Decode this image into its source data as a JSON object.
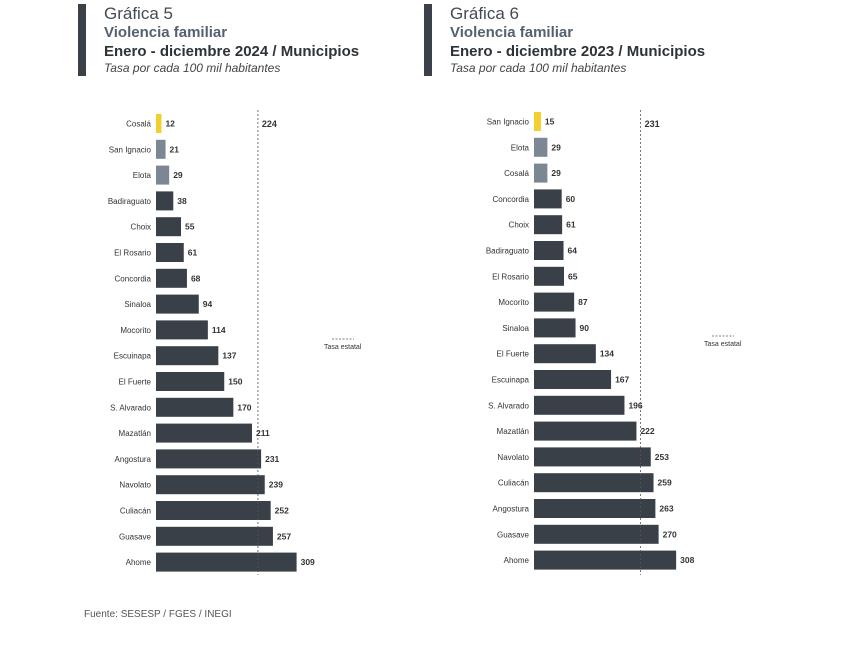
{
  "source": "Fuente: SESESP / FGES / INEGI",
  "colors": {
    "highlight": "#f2cf2e",
    "mid": "#7d8793",
    "dark": "#3a4048"
  },
  "chart_data": [
    {
      "type": "bar",
      "orientation": "horizontal",
      "label": "Gráfica 5",
      "title": "Violencia familiar",
      "subtitle": "Enero - diciembre 2024 / Municipios",
      "note": "Tasa por cada 100 mil habitantes",
      "reference_value": 224,
      "reference_label": "224",
      "legend_label": "Tasa estatal",
      "categories": [
        "Cosalá",
        "San Ignacio",
        "Elota",
        "Badiraguato",
        "Choix",
        "El Rosario",
        "Concordia",
        "Sinaloa",
        "Mocorito",
        "Escuinapa",
        "El Fuerte",
        "S. Alvarado",
        "Mazatlán",
        "Angostura",
        "Navolato",
        "Culiacán",
        "Guasave",
        "Ahome"
      ],
      "values": [
        12,
        21,
        29,
        38,
        55,
        61,
        68,
        94,
        114,
        137,
        150,
        170,
        211,
        231,
        239,
        252,
        257,
        309
      ],
      "bar_colors": [
        "highlight",
        "mid",
        "mid",
        "dark",
        "dark",
        "dark",
        "dark",
        "dark",
        "dark",
        "dark",
        "dark",
        "dark",
        "dark",
        "dark",
        "dark",
        "dark",
        "dark",
        "dark"
      ]
    },
    {
      "type": "bar",
      "orientation": "horizontal",
      "label": "Gráfica 6",
      "title": "Violencia familiar",
      "subtitle": "Enero - diciembre 2023 / Municipios",
      "note": "Tasa por cada 100 mil habitantes",
      "reference_value": 231,
      "reference_label": "231",
      "legend_label": "Tasa estatal",
      "categories": [
        "San Ignacio",
        "Elota",
        "Cosalá",
        "Concordia",
        "Choix",
        "Badiraguato",
        "El Rosario",
        "Mocorito",
        "Sinaloa",
        "El Fuerte",
        "Escuinapa",
        "S. Alvarado",
        "Mazatlán",
        "Navolato",
        "Culiacán",
        "Angostura",
        "Guasave",
        "Ahome"
      ],
      "values": [
        15,
        29,
        29,
        60,
        61,
        64,
        65,
        87,
        90,
        134,
        167,
        196,
        222,
        253,
        259,
        263,
        270,
        308
      ],
      "bar_colors": [
        "highlight",
        "mid",
        "mid",
        "dark",
        "dark",
        "dark",
        "dark",
        "dark",
        "dark",
        "dark",
        "dark",
        "dark",
        "dark",
        "dark",
        "dark",
        "dark",
        "dark",
        "dark"
      ]
    }
  ]
}
